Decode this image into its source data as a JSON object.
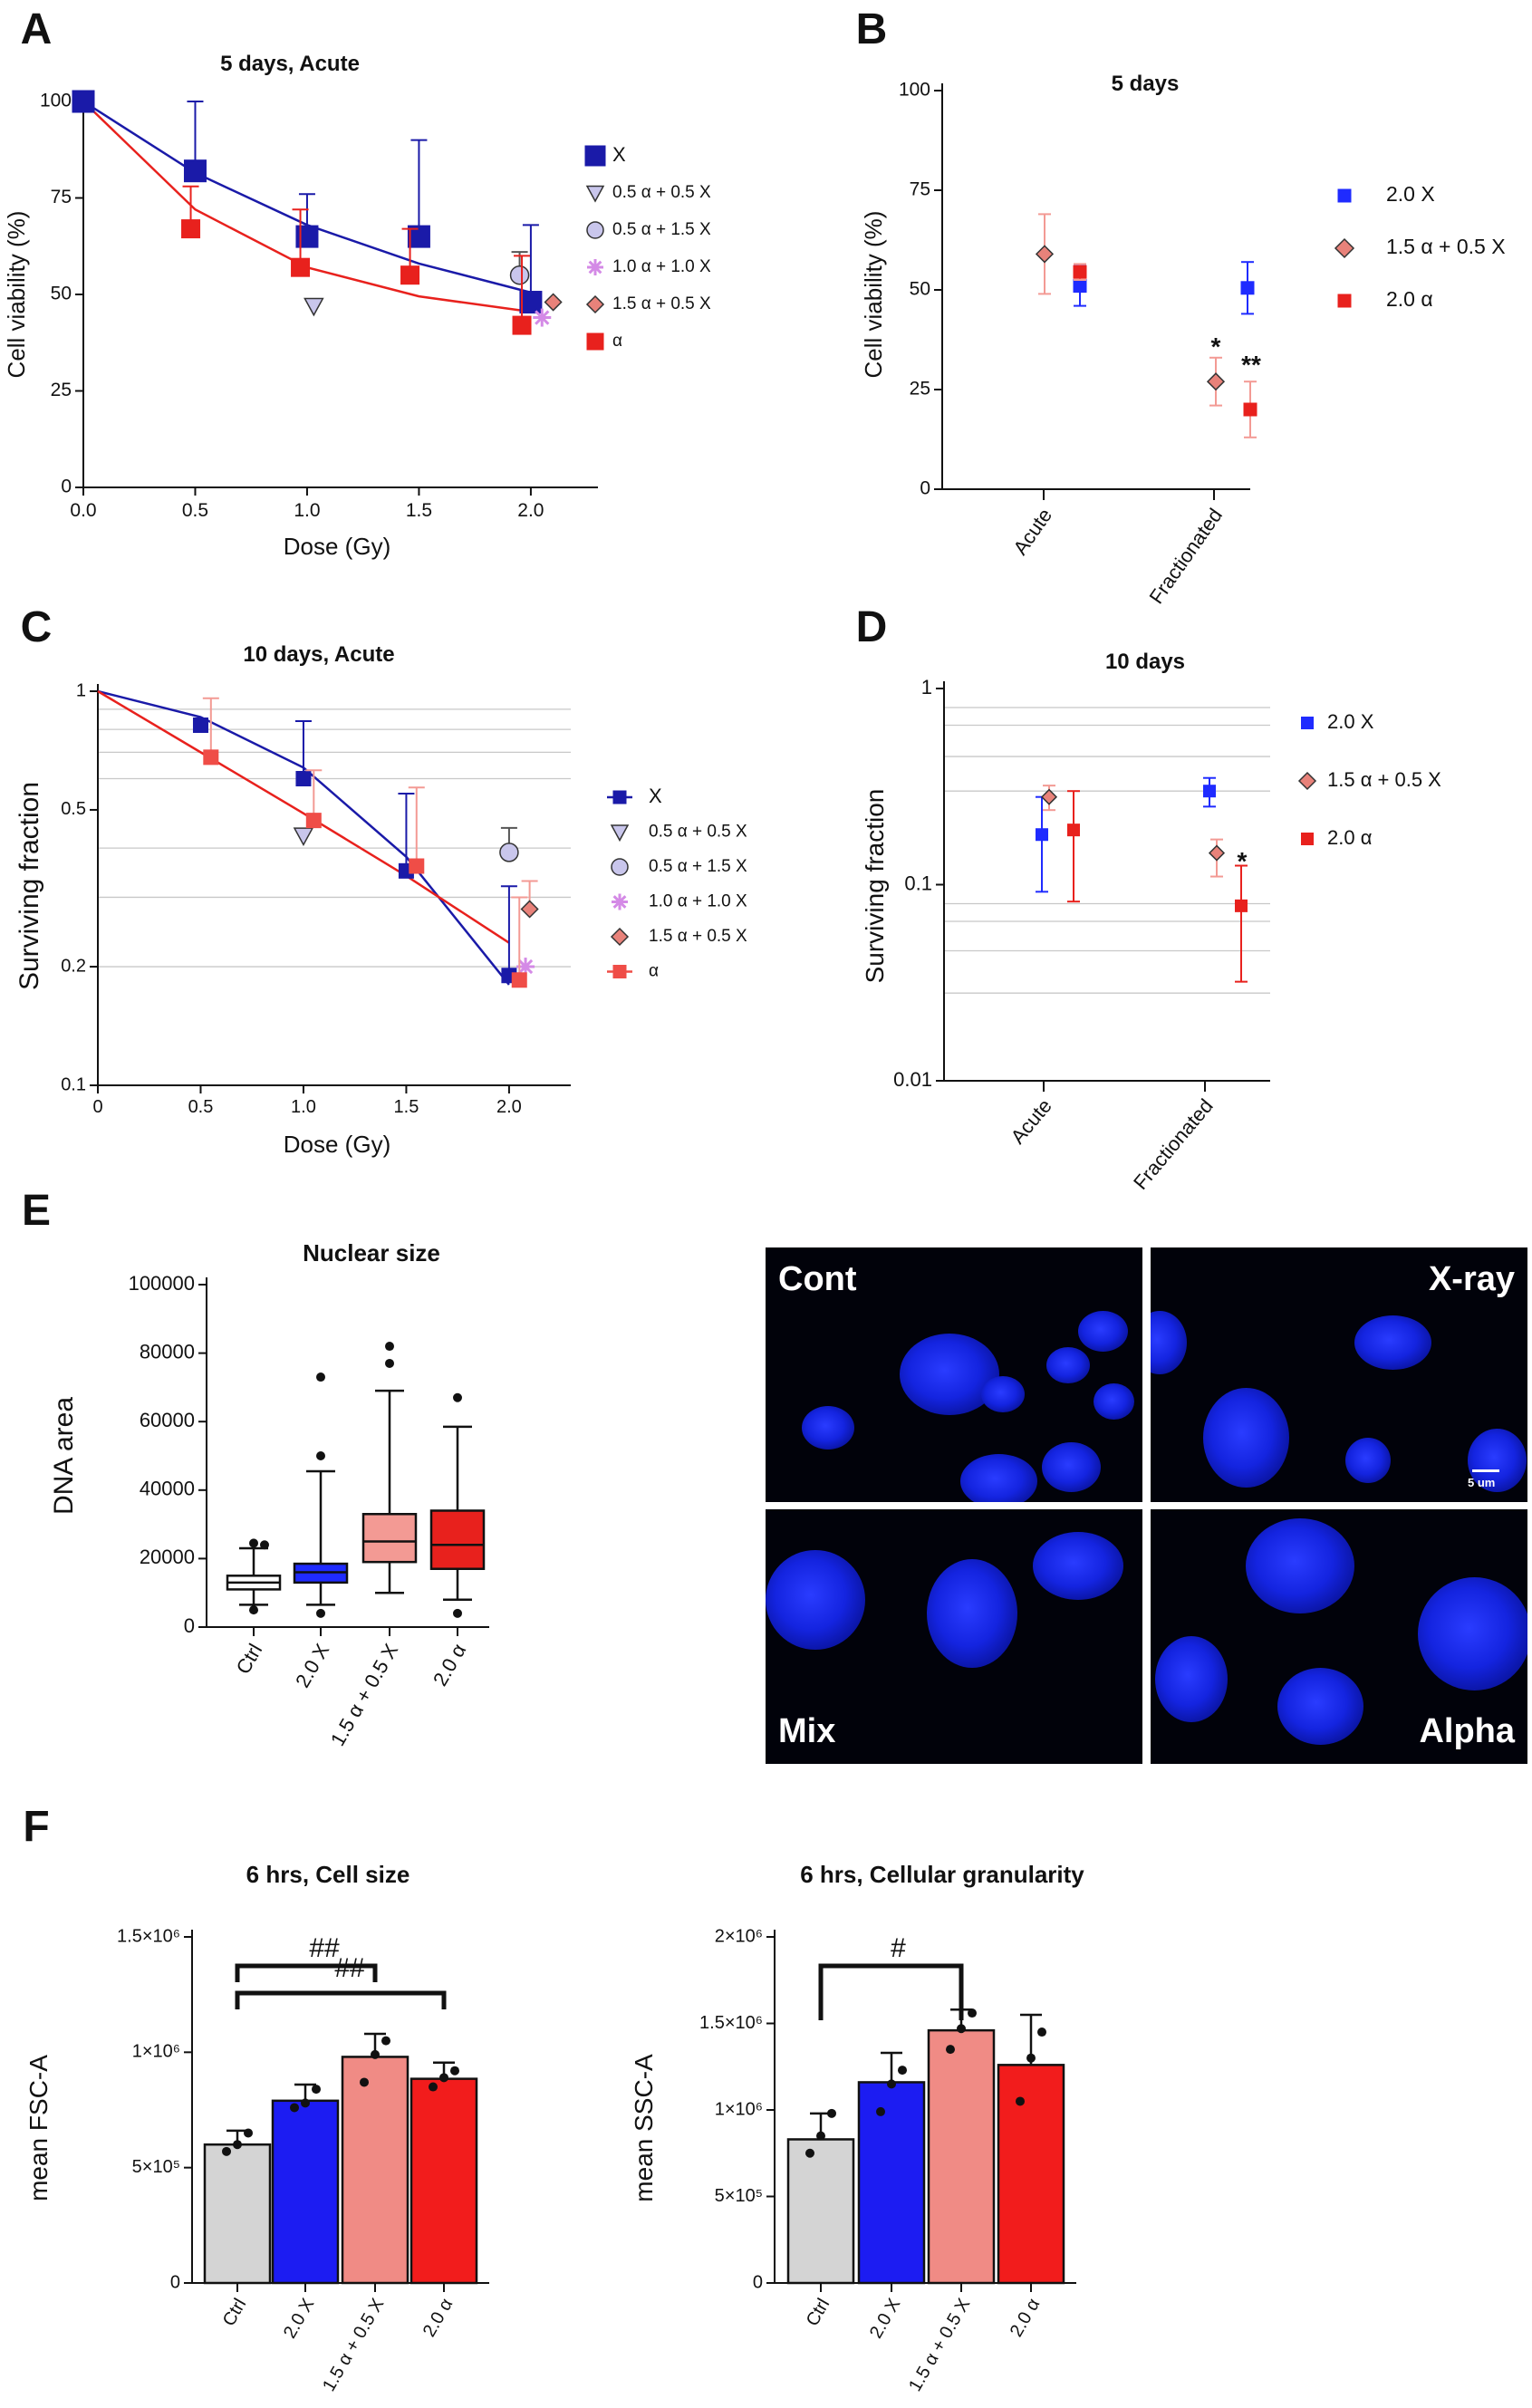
{
  "panel_letters": [
    "A",
    "B",
    "C",
    "D",
    "E",
    "F"
  ],
  "colors": {
    "xray": "#1a1aa8",
    "xray_bright": "#1f2bff",
    "alpha": "#e8211d",
    "mix": "#e8827a",
    "mix_light": "#f39a94",
    "ctrl": "#d4d4d4",
    "lavender": "#c9c6ec",
    "pink_star": "#d48ae6"
  },
  "chart_data": [
    {
      "id": "A",
      "type": "scatter",
      "title": "5 days, Acute",
      "xlabel": "Dose (Gy)",
      "ylabel": "Cell viability (%)",
      "xlim": [
        0,
        2.3
      ],
      "ylim": [
        0,
        100
      ],
      "xticks": [
        "0.0",
        "0.5",
        "1.0",
        "1.5",
        "2.0"
      ],
      "yticks": [
        "0",
        "25",
        "50",
        "75",
        "100"
      ],
      "series": [
        {
          "name": "X",
          "marker": "square",
          "x": [
            0,
            0.5,
            1.0,
            1.5,
            2.0
          ],
          "y": [
            100,
            82,
            65,
            65,
            48
          ],
          "err_up": [
            0,
            18,
            11,
            25,
            20
          ]
        },
        {
          "name": "0.5 α + 0.5 X",
          "marker": "triangle",
          "x": [
            1.03
          ],
          "y": [
            47
          ],
          "err_up": [
            0
          ]
        },
        {
          "name": "0.5 α + 1.5 X",
          "marker": "circle",
          "x": [
            1.95
          ],
          "y": [
            55
          ],
          "err_up": [
            6
          ]
        },
        {
          "name": "1.0 α + 1.0 X",
          "marker": "asterisk",
          "x": [
            2.05
          ],
          "y": [
            44
          ],
          "err_up": [
            0
          ]
        },
        {
          "name": "1.5 α + 0.5 X",
          "marker": "diamond",
          "x": [
            2.1
          ],
          "y": [
            48
          ],
          "err_up": [
            0
          ]
        },
        {
          "name": "α",
          "marker": "square",
          "x": [
            0.48,
            0.97,
            1.46,
            1.96
          ],
          "y": [
            67,
            57,
            55,
            42
          ],
          "err_up": [
            11,
            15,
            12,
            18
          ]
        }
      ],
      "fits": [
        {
          "name": "X",
          "points": [
            [
              0,
              100
            ],
            [
              0.5,
              81.5
            ],
            [
              1.0,
              68
            ],
            [
              1.5,
              58
            ],
            [
              2.0,
              50.5
            ]
          ]
        },
        {
          "name": "α",
          "points": [
            [
              0,
              100
            ],
            [
              0.5,
              72
            ],
            [
              1.0,
              57
            ],
            [
              1.5,
              49.5
            ],
            [
              2.0,
              45.5
            ]
          ]
        }
      ]
    },
    {
      "id": "B",
      "type": "scatter",
      "title": "5 days",
      "ylabel": "Cell viability (%)",
      "categories": [
        "Acute",
        "Fractionated"
      ],
      "ylim": [
        0,
        100
      ],
      "yticks": [
        "0",
        "25",
        "50",
        "75",
        "100"
      ],
      "series": [
        {
          "name": "2.0 X",
          "marker": "square",
          "values": [
            51,
            50.5
          ],
          "err": [
            5,
            6.5
          ]
        },
        {
          "name": "1.5 α + 0.5 X",
          "marker": "diamond",
          "values": [
            59,
            27
          ],
          "err": [
            10,
            6
          ]
        },
        {
          "name": "2.0 α",
          "marker": "square",
          "values": [
            54.5,
            20
          ],
          "err": [
            2,
            7
          ]
        }
      ],
      "annotations": [
        "*",
        "**"
      ]
    },
    {
      "id": "C",
      "type": "scatter",
      "title": "10 days, Acute",
      "xlabel": "Dose (Gy)",
      "ylabel": "Surviving fraction",
      "yscale": "log",
      "xlim": [
        0,
        2.3
      ],
      "ylim": [
        0.1,
        1
      ],
      "xticks": [
        "0",
        "0.5",
        "1.0",
        "1.5",
        "2.0"
      ],
      "yticks": [
        "0.1",
        "0.2",
        "0.5",
        "1"
      ],
      "series": [
        {
          "name": "X",
          "marker": "square",
          "x": [
            0.5,
            1.0,
            1.5,
            2.0
          ],
          "y": [
            0.82,
            0.6,
            0.35,
            0.19
          ],
          "err_up": [
            0,
            0.84,
            0.55,
            0.32
          ]
        },
        {
          "name": "0.5 α + 0.5 X",
          "marker": "triangle",
          "x": [
            1.0
          ],
          "y": [
            0.43
          ],
          "err_up": [
            0
          ]
        },
        {
          "name": "0.5 α + 1.5 X",
          "marker": "circle",
          "x": [
            2.0
          ],
          "y": [
            0.39
          ],
          "err_up": [
            0.45
          ]
        },
        {
          "name": "1.0 α + 1.0 X",
          "marker": "asterisk",
          "x": [
            2.08
          ],
          "y": [
            0.2
          ],
          "err_up": [
            0
          ]
        },
        {
          "name": "1.5 α + 0.5 X",
          "marker": "diamond",
          "x": [
            2.1
          ],
          "y": [
            0.28
          ],
          "err_up": [
            0.33
          ]
        },
        {
          "name": "α",
          "marker": "square",
          "x": [
            0.55,
            1.05,
            1.55,
            2.05
          ],
          "y": [
            0.68,
            0.47,
            0.36,
            0.185
          ],
          "err_up": [
            0.96,
            0.63,
            0.57,
            0.3
          ]
        }
      ],
      "fits": [
        {
          "name": "X",
          "points": [
            [
              0,
              1
            ],
            [
              0.5,
              0.86
            ],
            [
              1.0,
              0.64
            ],
            [
              1.5,
              0.38
            ],
            [
              2.0,
              0.18
            ]
          ]
        },
        {
          "name": "α",
          "points": [
            [
              0,
              1
            ],
            [
              0.5,
              0.7
            ],
            [
              1.0,
              0.49
            ],
            [
              1.5,
              0.34
            ],
            [
              2.0,
              0.23
            ]
          ]
        }
      ]
    },
    {
      "id": "D",
      "type": "scatter",
      "title": "10 days",
      "ylabel": "Surviving fraction",
      "yscale": "log",
      "categories": [
        "Acute",
        "Fractionated"
      ],
      "ylim": [
        0.01,
        1
      ],
      "yticks": [
        "0.01",
        "0.1",
        "1"
      ],
      "series": [
        {
          "name": "2.0 X",
          "marker": "square",
          "values": [
            0.18,
            0.3
          ],
          "err_lo": [
            0.092,
            0.25
          ],
          "err_hi": [
            0.28,
            0.35
          ]
        },
        {
          "name": "1.5 α + 0.5 X",
          "marker": "diamond",
          "values": [
            0.28,
            0.145
          ],
          "err_lo": [
            0.24,
            0.11
          ],
          "err_hi": [
            0.32,
            0.17
          ]
        },
        {
          "name": "2.0 α",
          "marker": "square",
          "values": [
            0.19,
            0.078
          ],
          "err_lo": [
            0.082,
            0.032
          ],
          "err_hi": [
            0.3,
            0.125
          ]
        }
      ],
      "annotations": [
        "*"
      ]
    },
    {
      "id": "E",
      "type": "box",
      "title": "Nuclear size",
      "ylabel": "DNA area",
      "categories": [
        "Ctrl",
        "2.0 X",
        "1.5 α + 0.5 X",
        "2.0 α"
      ],
      "ylim": [
        0,
        100000
      ],
      "yticks": [
        "0",
        "20000",
        "40000",
        "60000",
        "80000",
        "100000"
      ],
      "boxes": [
        {
          "q1": 11000,
          "median": 13000,
          "q3": 15000,
          "wlo": 6500,
          "whi": 23000,
          "outliers": [
            5000,
            24000,
            24500
          ]
        },
        {
          "q1": 13000,
          "median": 16000,
          "q3": 18500,
          "wlo": 6500,
          "whi": 45500,
          "outliers": [
            4000,
            50000,
            73000
          ]
        },
        {
          "q1": 19000,
          "median": 25000,
          "q3": 33000,
          "wlo": 10000,
          "whi": 69000,
          "outliers": [
            77000,
            82000
          ]
        },
        {
          "q1": 17000,
          "median": 24000,
          "q3": 34000,
          "wlo": 8000,
          "whi": 58500,
          "outliers": [
            4000,
            67000
          ]
        }
      ]
    },
    {
      "id": "F1",
      "type": "bar",
      "title": "6 hrs, Cell size",
      "ylabel": "mean FSC-A",
      "categories": [
        "Ctrl",
        "2.0 X",
        "1.5 α + 0.5 X",
        "2.0 α"
      ],
      "values": [
        600000,
        790000,
        980000,
        885000
      ],
      "err": [
        60000,
        70000,
        100000,
        70000
      ],
      "points": [
        [
          570000,
          600000,
          650000
        ],
        [
          760000,
          780000,
          840000
        ],
        [
          870000,
          990000,
          1050000
        ],
        [
          850000,
          890000,
          920000
        ]
      ],
      "ylim": [
        0,
        1500000
      ],
      "yticks": [
        "0",
        "5×10⁵",
        "1×10⁶",
        "1.5×10⁶"
      ],
      "brackets": [
        "##",
        "##"
      ]
    },
    {
      "id": "F2",
      "type": "bar",
      "title": "6 hrs, Cellular granularity",
      "ylabel": "mean SSC-A",
      "categories": [
        "Ctrl",
        "2.0 X",
        "1.5 α + 0.5 X",
        "2.0 α"
      ],
      "values": [
        830000,
        1160000,
        1460000,
        1260000
      ],
      "err": [
        150000,
        170000,
        120000,
        290000
      ],
      "points": [
        [
          750000,
          850000,
          980000
        ],
        [
          990000,
          1150000,
          1230000
        ],
        [
          1350000,
          1470000,
          1560000
        ],
        [
          1050000,
          1300000,
          1450000
        ]
      ],
      "ylim": [
        0,
        2000000
      ],
      "yticks": [
        "0",
        "5×10⁵",
        "1×10⁶",
        "1.5×10⁶",
        "2×10⁶"
      ],
      "brackets": [
        "#"
      ]
    }
  ],
  "micrographs": {
    "labels": [
      "Cont",
      "X-ray",
      "Mix",
      "Alpha"
    ],
    "scale_label": "5 um"
  }
}
